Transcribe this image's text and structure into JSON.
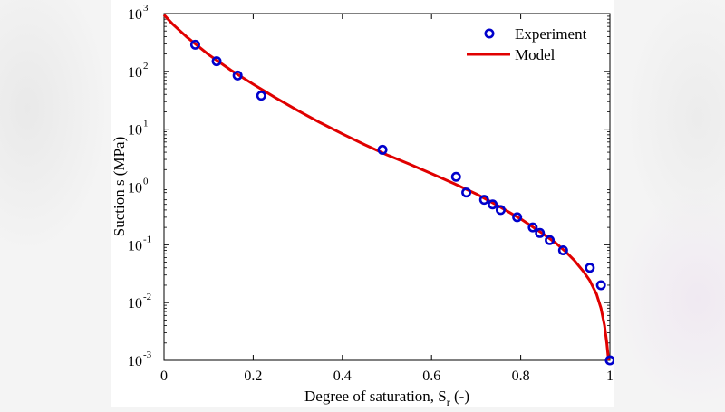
{
  "chart_data": {
    "type": "scatter",
    "xlabel": "Degree of saturation, S",
    "xlabel_sub": "r",
    "xlabel_suffix": " (-)",
    "ylabel": "Suction s (MPa)",
    "xlim": [
      0,
      1
    ],
    "ylim": [
      0.001,
      1000
    ],
    "yscale": "log",
    "grid": false,
    "legend_position": "top-right",
    "x_ticks": [
      0,
      0.2,
      0.4,
      0.6,
      0.8,
      1
    ],
    "x_tick_labels": [
      "0",
      "0.2",
      "0.4",
      "0.6",
      "0.8",
      "1"
    ],
    "y_tick_exponents": [
      -3,
      -2,
      -1,
      0,
      1,
      2,
      3
    ],
    "y_tick_base": "10",
    "series": [
      {
        "name": "Experiment",
        "kind": "markers",
        "color": "#0000cc",
        "points": [
          {
            "x": 0.07,
            "y": 290
          },
          {
            "x": 0.118,
            "y": 150
          },
          {
            "x": 0.165,
            "y": 85
          },
          {
            "x": 0.218,
            "y": 38
          },
          {
            "x": 0.49,
            "y": 4.4
          },
          {
            "x": 0.655,
            "y": 1.5
          },
          {
            "x": 0.678,
            "y": 0.8
          },
          {
            "x": 0.718,
            "y": 0.6
          },
          {
            "x": 0.737,
            "y": 0.5
          },
          {
            "x": 0.755,
            "y": 0.4
          },
          {
            "x": 0.792,
            "y": 0.3
          },
          {
            "x": 0.827,
            "y": 0.2
          },
          {
            "x": 0.843,
            "y": 0.16
          },
          {
            "x": 0.865,
            "y": 0.12
          },
          {
            "x": 0.895,
            "y": 0.08
          },
          {
            "x": 0.955,
            "y": 0.04
          },
          {
            "x": 0.98,
            "y": 0.02
          },
          {
            "x": 1.0,
            "y": 0.001
          }
        ]
      },
      {
        "name": "Model",
        "kind": "line",
        "color": "#e00000",
        "points": [
          {
            "x": 0.0,
            "y": 950
          },
          {
            "x": 0.02,
            "y": 650
          },
          {
            "x": 0.05,
            "y": 400
          },
          {
            "x": 0.1,
            "y": 195
          },
          {
            "x": 0.15,
            "y": 105
          },
          {
            "x": 0.2,
            "y": 60
          },
          {
            "x": 0.25,
            "y": 35
          },
          {
            "x": 0.3,
            "y": 21
          },
          {
            "x": 0.35,
            "y": 13
          },
          {
            "x": 0.4,
            "y": 8.3
          },
          {
            "x": 0.45,
            "y": 5.4
          },
          {
            "x": 0.5,
            "y": 3.6
          },
          {
            "x": 0.55,
            "y": 2.5
          },
          {
            "x": 0.6,
            "y": 1.7
          },
          {
            "x": 0.65,
            "y": 1.15
          },
          {
            "x": 0.7,
            "y": 0.76
          },
          {
            "x": 0.75,
            "y": 0.47
          },
          {
            "x": 0.8,
            "y": 0.28
          },
          {
            "x": 0.85,
            "y": 0.155
          },
          {
            "x": 0.88,
            "y": 0.105
          },
          {
            "x": 0.9,
            "y": 0.077
          },
          {
            "x": 0.92,
            "y": 0.054
          },
          {
            "x": 0.94,
            "y": 0.035
          },
          {
            "x": 0.955,
            "y": 0.024
          },
          {
            "x": 0.97,
            "y": 0.014
          },
          {
            "x": 0.98,
            "y": 0.008
          },
          {
            "x": 0.988,
            "y": 0.004
          },
          {
            "x": 0.993,
            "y": 0.002
          },
          {
            "x": 0.997,
            "y": 0.001
          }
        ]
      }
    ]
  }
}
